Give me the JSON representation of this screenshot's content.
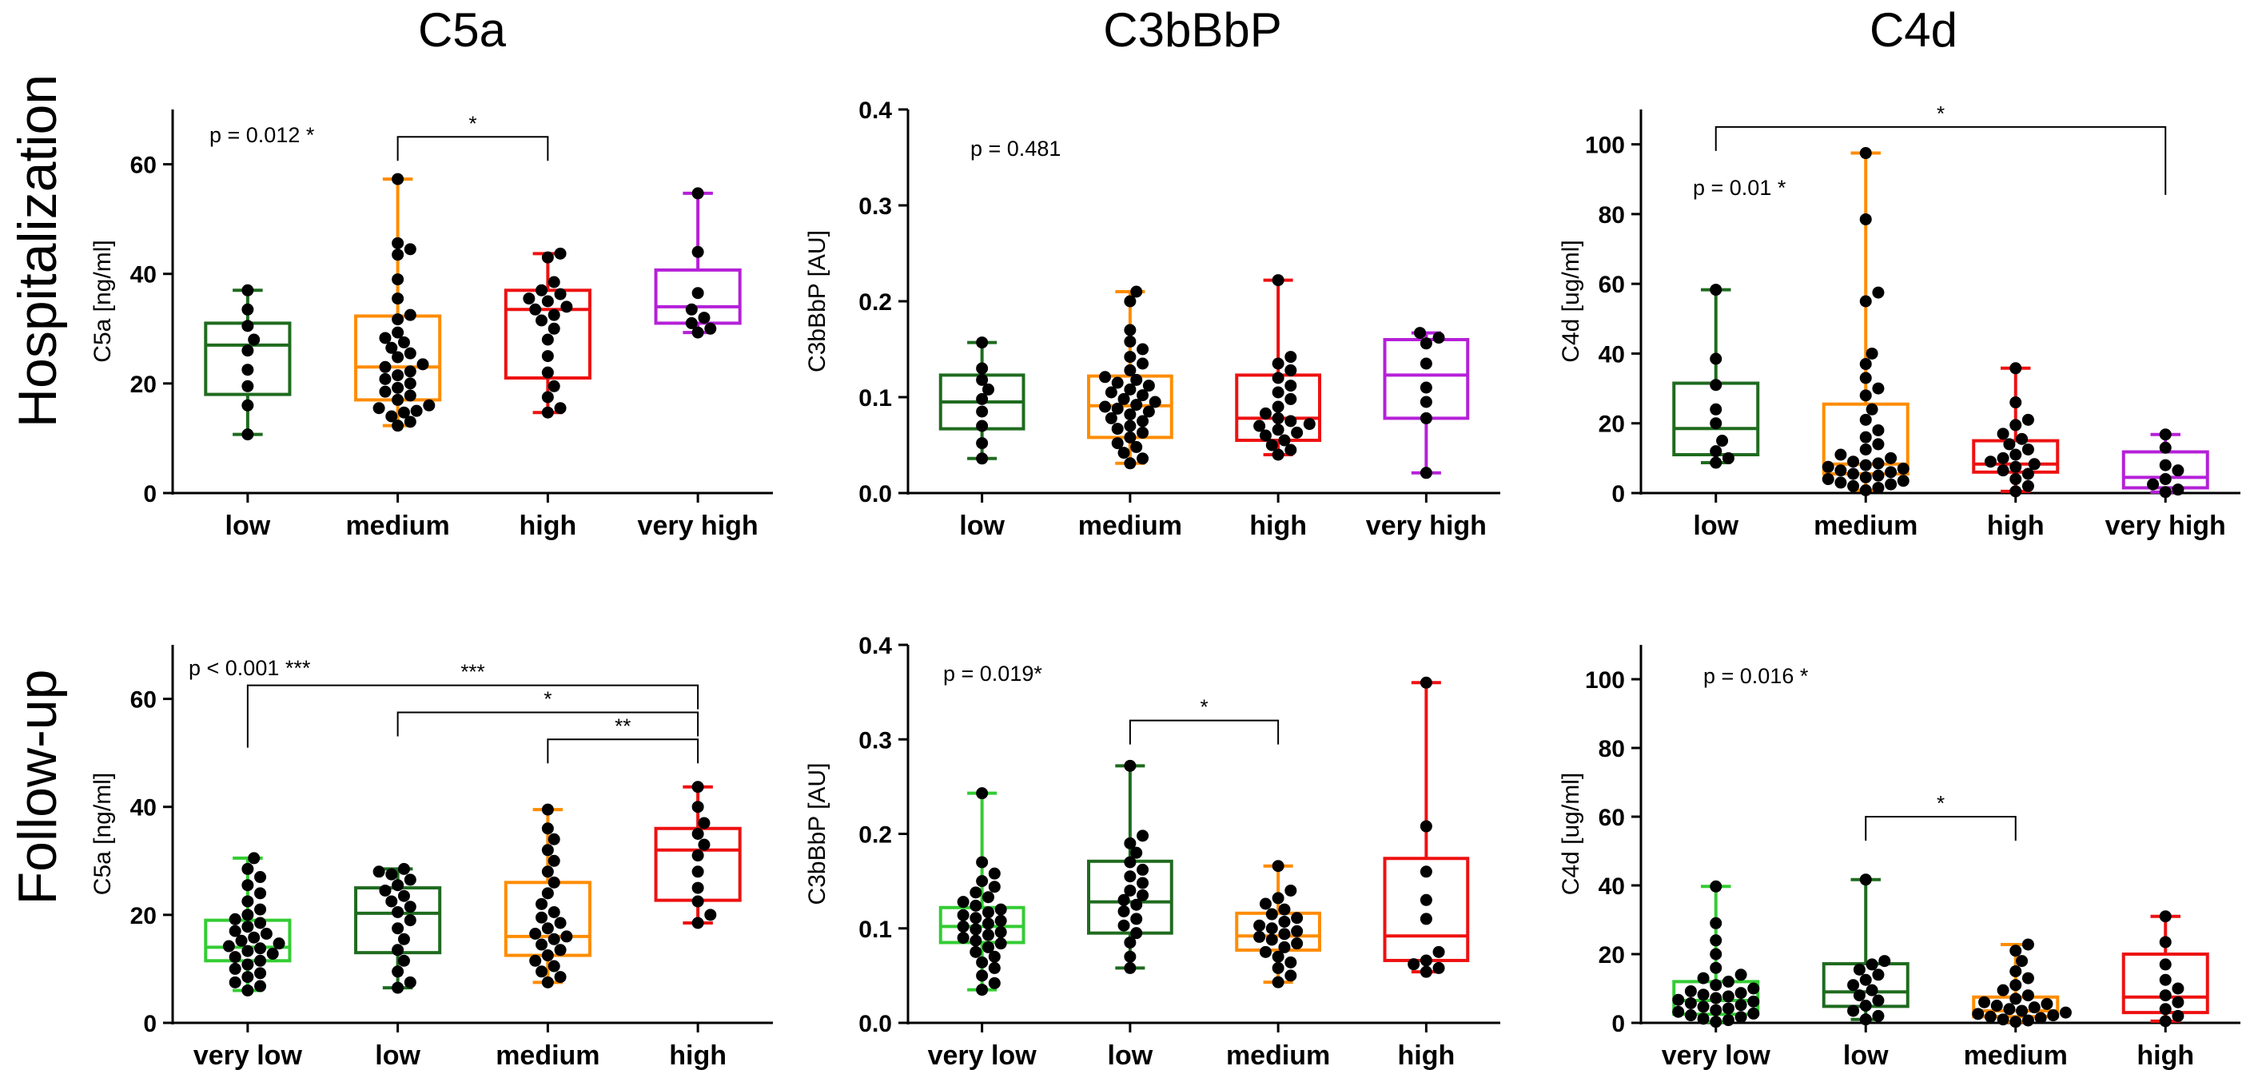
{
  "figure": {
    "column_titles": [
      "C5a",
      "C3bBbP",
      "C4d"
    ],
    "row_titles": [
      "Hospitalization",
      "Follow-up"
    ]
  },
  "colors": {
    "darkgreen": "#1f6b1f",
    "green": "#33cc33",
    "orange": "#ff8c00",
    "red": "#ee1111",
    "purple": "#b520d8",
    "dot": "#000000"
  },
  "chart_data": [
    {
      "type": "box",
      "id": "c5a-hosp",
      "title": "C5a",
      "ylabel": "C5a [ng/ml]",
      "ylim": [
        0,
        70
      ],
      "yticks": [
        0,
        20,
        40,
        60
      ],
      "categories": [
        "low",
        "medium",
        "high",
        "very high"
      ],
      "colors": [
        "darkgreen",
        "orange",
        "red",
        "purple"
      ],
      "boxes": [
        {
          "min": 10.7,
          "q1": 18.0,
          "median": 27.0,
          "q3": 31.0,
          "max": 37.0
        },
        {
          "min": 12.3,
          "q1": 17.0,
          "median": 23.0,
          "q3": 32.3,
          "max": 57.3
        },
        {
          "min": 14.7,
          "q1": 21.0,
          "median": 33.5,
          "q3": 37.0,
          "max": 43.7
        },
        {
          "min": 29.3,
          "q1": 31.0,
          "median": 34.0,
          "q3": 40.7,
          "max": 54.7
        }
      ],
      "points": [
        [
          10.7,
          16,
          19.5,
          22.5,
          26,
          28,
          30.5,
          33.5,
          37
        ],
        [
          12.3,
          13,
          14,
          14.7,
          15,
          15.5,
          16,
          17,
          17.8,
          18.5,
          19.2,
          20,
          20.8,
          21.5,
          22.2,
          23,
          23.5,
          24.8,
          25.5,
          26.5,
          27.5,
          28.3,
          29.3,
          31.7,
          32.5,
          35.5,
          39,
          43.5,
          44.5,
          45.6,
          57.3
        ],
        [
          14.7,
          15.5,
          17.5,
          19.5,
          22,
          25,
          28,
          30,
          31.5,
          32.5,
          33.5,
          34,
          35,
          35.5,
          36.3,
          37,
          38.5,
          43,
          43.7
        ],
        [
          29.3,
          30,
          31,
          32,
          33.5,
          36.5,
          44,
          54.7
        ]
      ],
      "p_text": "p = 0.012 *",
      "brackets": [
        {
          "from": 1,
          "to": 2,
          "y": 65,
          "label": "*"
        }
      ]
    },
    {
      "type": "box",
      "id": "c3bbbp-hosp",
      "title": "C3bBbP",
      "ylabel": "C3bBbP [AU]",
      "ylim": [
        0,
        0.4
      ],
      "yticks": [
        0.0,
        0.1,
        0.2,
        0.3,
        0.4
      ],
      "ytick_labels": [
        "0.0",
        "0.1",
        "0.2",
        "0.3",
        "0.4"
      ],
      "categories": [
        "low",
        "medium",
        "high",
        "very high"
      ],
      "colors": [
        "darkgreen",
        "orange",
        "red",
        "purple"
      ],
      "boxes": [
        {
          "min": 0.036,
          "q1": 0.067,
          "median": 0.095,
          "q3": 0.123,
          "max": 0.157
        },
        {
          "min": 0.031,
          "q1": 0.058,
          "median": 0.091,
          "q3": 0.122,
          "max": 0.21
        },
        {
          "min": 0.04,
          "q1": 0.055,
          "median": 0.078,
          "q3": 0.123,
          "max": 0.222
        },
        {
          "min": 0.021,
          "q1": 0.078,
          "median": 0.123,
          "q3": 0.16,
          "max": 0.167
        }
      ],
      "points": [
        [
          0.036,
          0.052,
          0.07,
          0.085,
          0.098,
          0.108,
          0.118,
          0.13,
          0.157
        ],
        [
          0.031,
          0.036,
          0.042,
          0.048,
          0.052,
          0.058,
          0.063,
          0.067,
          0.07,
          0.075,
          0.078,
          0.082,
          0.085,
          0.088,
          0.09,
          0.092,
          0.095,
          0.098,
          0.102,
          0.105,
          0.108,
          0.112,
          0.115,
          0.118,
          0.121,
          0.128,
          0.135,
          0.142,
          0.15,
          0.158,
          0.17,
          0.2,
          0.21
        ],
        [
          0.04,
          0.045,
          0.05,
          0.055,
          0.06,
          0.063,
          0.066,
          0.07,
          0.072,
          0.075,
          0.078,
          0.083,
          0.09,
          0.098,
          0.105,
          0.112,
          0.12,
          0.128,
          0.135,
          0.142,
          0.222
        ],
        [
          0.021,
          0.078,
          0.095,
          0.11,
          0.135,
          0.156,
          0.162,
          0.167
        ]
      ],
      "p_text": "p = 0.481",
      "brackets": []
    },
    {
      "type": "box",
      "id": "c4d-hosp",
      "title": "C4d",
      "ylabel": "C4d [ug/ml]",
      "ylim": [
        0,
        110
      ],
      "yticks": [
        0,
        20,
        40,
        60,
        80,
        100
      ],
      "categories": [
        "low",
        "medium",
        "high",
        "very high"
      ],
      "colors": [
        "darkgreen",
        "orange",
        "red",
        "purple"
      ],
      "boxes": [
        {
          "min": 8.7,
          "q1": 11.0,
          "median": 18.5,
          "q3": 31.5,
          "max": 58.3
        },
        {
          "min": 0.8,
          "q1": 5.5,
          "median": 8.3,
          "q3": 25.5,
          "max": 97.5
        },
        {
          "min": 0.5,
          "q1": 6.0,
          "median": 8.3,
          "q3": 15.0,
          "max": 35.8
        },
        {
          "min": 0.3,
          "q1": 1.5,
          "median": 4.5,
          "q3": 11.8,
          "max": 16.8
        }
      ],
      "points": [
        [
          8.7,
          10,
          12,
          15,
          20,
          24,
          31,
          38.5,
          58.3
        ],
        [
          0.8,
          1.5,
          2,
          2.5,
          3,
          3.5,
          4,
          4.5,
          5,
          5.5,
          6,
          6.5,
          7,
          7.5,
          8,
          8.5,
          9,
          10,
          11,
          12.5,
          14,
          16,
          18,
          21,
          24,
          28,
          30,
          33,
          37,
          40,
          55,
          57.5,
          78.5,
          97.5
        ],
        [
          0.5,
          2,
          4,
          5.5,
          6.5,
          7.5,
          8.3,
          9,
          10,
          11,
          12.5,
          14,
          15.5,
          17,
          19.5,
          21,
          26,
          35.8
        ],
        [
          0.3,
          1,
          2.5,
          4,
          6.5,
          8,
          13,
          16.8
        ]
      ],
      "p_text": "p = 0.01 *",
      "brackets": [
        {
          "from": 0,
          "to": 3,
          "y": 105,
          "label": "*",
          "drop_to": [
            2,
            83
          ]
        }
      ]
    },
    {
      "type": "box",
      "id": "c5a-fu",
      "title": "C5a",
      "ylabel": "C5a [ng/ml]",
      "ylim": [
        0,
        70
      ],
      "yticks": [
        0,
        20,
        40,
        60
      ],
      "categories": [
        "very low",
        "low",
        "medium",
        "high"
      ],
      "colors": [
        "green",
        "darkgreen",
        "orange",
        "red"
      ],
      "boxes": [
        {
          "min": 6.0,
          "q1": 11.5,
          "median": 14.0,
          "q3": 19.0,
          "max": 30.5
        },
        {
          "min": 6.5,
          "q1": 13.0,
          "median": 20.3,
          "q3": 25.0,
          "max": 28.5
        },
        {
          "min": 7.5,
          "q1": 12.5,
          "median": 16.0,
          "q3": 26.0,
          "max": 39.5
        },
        {
          "min": 18.5,
          "q1": 22.7,
          "median": 32.0,
          "q3": 36.0,
          "max": 43.7
        }
      ],
      "points": [
        [
          6,
          6.8,
          7.5,
          8.5,
          9.2,
          10,
          10.8,
          11.5,
          12.2,
          12.8,
          13.3,
          13.8,
          14.2,
          14.7,
          15.2,
          15.8,
          16.5,
          17,
          17.8,
          18.5,
          19.2,
          20,
          21,
          22.5,
          24,
          25.5,
          27,
          28.5,
          30.5
        ],
        [
          6.5,
          7.5,
          9.5,
          11.5,
          13.5,
          15.5,
          17.5,
          19,
          20.5,
          21.5,
          22.5,
          23.5,
          24.5,
          25.5,
          26.5,
          27.5,
          28,
          28.5
        ],
        [
          7.5,
          8.5,
          9.5,
          10.5,
          11.5,
          12.5,
          13.5,
          14.5,
          15.5,
          16,
          16.5,
          17.5,
          18.5,
          19.5,
          20.5,
          22,
          24,
          26,
          28,
          30,
          32,
          34,
          36,
          39.5
        ],
        [
          18.5,
          20,
          22.5,
          25,
          28,
          31,
          33,
          35,
          37,
          40,
          43.7
        ]
      ],
      "p_text": "p < 0.001 ***",
      "brackets": [
        {
          "from": 0,
          "to": 3,
          "y": 62.5,
          "label": "***"
        },
        {
          "from": 1,
          "to": 3,
          "y": 57.5,
          "label": "*"
        },
        {
          "from": 2,
          "to": 3,
          "y": 52.5,
          "label": "**"
        }
      ]
    },
    {
      "type": "box",
      "id": "c3bbbp-fu",
      "title": "C3bBbP",
      "ylabel": "C3bBbP [AU]",
      "ylim": [
        0,
        0.4
      ],
      "yticks": [
        0.0,
        0.1,
        0.2,
        0.3,
        0.4
      ],
      "ytick_labels": [
        "0.0",
        "0.1",
        "0.2",
        "0.3",
        "0.4"
      ],
      "categories": [
        "very low",
        "low",
        "medium",
        "high"
      ],
      "colors": [
        "green",
        "darkgreen",
        "orange",
        "red"
      ],
      "boxes": [
        {
          "min": 0.035,
          "q1": 0.085,
          "median": 0.102,
          "q3": 0.122,
          "max": 0.243
        },
        {
          "min": 0.058,
          "q1": 0.095,
          "median": 0.128,
          "q3": 0.171,
          "max": 0.272
        },
        {
          "min": 0.043,
          "q1": 0.077,
          "median": 0.092,
          "q3": 0.116,
          "max": 0.166
        },
        {
          "min": 0.054,
          "q1": 0.066,
          "median": 0.092,
          "q3": 0.174,
          "max": 0.36
        }
      ],
      "points": [
        [
          0.035,
          0.042,
          0.05,
          0.058,
          0.064,
          0.07,
          0.075,
          0.08,
          0.084,
          0.087,
          0.09,
          0.093,
          0.096,
          0.099,
          0.102,
          0.105,
          0.108,
          0.111,
          0.114,
          0.117,
          0.12,
          0.124,
          0.128,
          0.133,
          0.138,
          0.144,
          0.15,
          0.158,
          0.17,
          0.243
        ],
        [
          0.058,
          0.07,
          0.085,
          0.095,
          0.103,
          0.11,
          0.118,
          0.125,
          0.13,
          0.135,
          0.14,
          0.148,
          0.155,
          0.162,
          0.17,
          0.18,
          0.19,
          0.198,
          0.272
        ],
        [
          0.043,
          0.05,
          0.058,
          0.064,
          0.07,
          0.075,
          0.08,
          0.084,
          0.088,
          0.091,
          0.094,
          0.097,
          0.1,
          0.103,
          0.107,
          0.111,
          0.115,
          0.12,
          0.126,
          0.132,
          0.14,
          0.166
        ],
        [
          0.054,
          0.058,
          0.062,
          0.066,
          0.075,
          0.11,
          0.13,
          0.16,
          0.208,
          0.36
        ]
      ],
      "p_text": "p = 0.019*",
      "brackets": [
        {
          "from": 1,
          "to": 2,
          "y": 0.32,
          "label": "*"
        }
      ]
    },
    {
      "type": "box",
      "id": "c4d-fu",
      "title": "C4d",
      "ylabel": "C4d [ug/ml]",
      "ylim": [
        0,
        110
      ],
      "yticks": [
        0,
        20,
        40,
        60,
        80,
        100
      ],
      "categories": [
        "very low",
        "low",
        "medium",
        "high"
      ],
      "colors": [
        "green",
        "darkgreen",
        "orange",
        "red"
      ],
      "boxes": [
        {
          "min": 0.3,
          "q1": 2.5,
          "median": 6.5,
          "q3": 12.0,
          "max": 39.7
        },
        {
          "min": 1.0,
          "q1": 4.8,
          "median": 9.0,
          "q3": 17.2,
          "max": 41.7
        },
        {
          "min": 0.3,
          "q1": 1.8,
          "median": 3.5,
          "q3": 7.5,
          "max": 22.8
        },
        {
          "min": 0.5,
          "q1": 3.0,
          "median": 7.5,
          "q3": 20.0,
          "max": 31.0
        }
      ],
      "points": [
        [
          0.3,
          0.8,
          1.2,
          1.7,
          2.2,
          2.7,
          3.2,
          3.7,
          4.2,
          4.7,
          5.2,
          5.7,
          6.2,
          6.7,
          7.2,
          7.7,
          8.2,
          8.7,
          9.2,
          10,
          11,
          12,
          13,
          14,
          16,
          20,
          24,
          29,
          39.7
        ],
        [
          1,
          2,
          3.5,
          5,
          6.5,
          8,
          9.5,
          11,
          12.5,
          14,
          15.5,
          17,
          18,
          41.7
        ],
        [
          0.3,
          0.7,
          1,
          1.4,
          1.8,
          2.2,
          2.6,
          3,
          3.5,
          4,
          4.5,
          5,
          5.5,
          6,
          7,
          8,
          9.5,
          11,
          13,
          15,
          18,
          21,
          22.8
        ],
        [
          0.5,
          2,
          4,
          6,
          8,
          10,
          12.5,
          17,
          23.5,
          31
        ]
      ],
      "p_text": "p = 0.016 *",
      "brackets": [
        {
          "from": 1,
          "to": 2,
          "y": 60,
          "label": "*"
        }
      ]
    }
  ]
}
